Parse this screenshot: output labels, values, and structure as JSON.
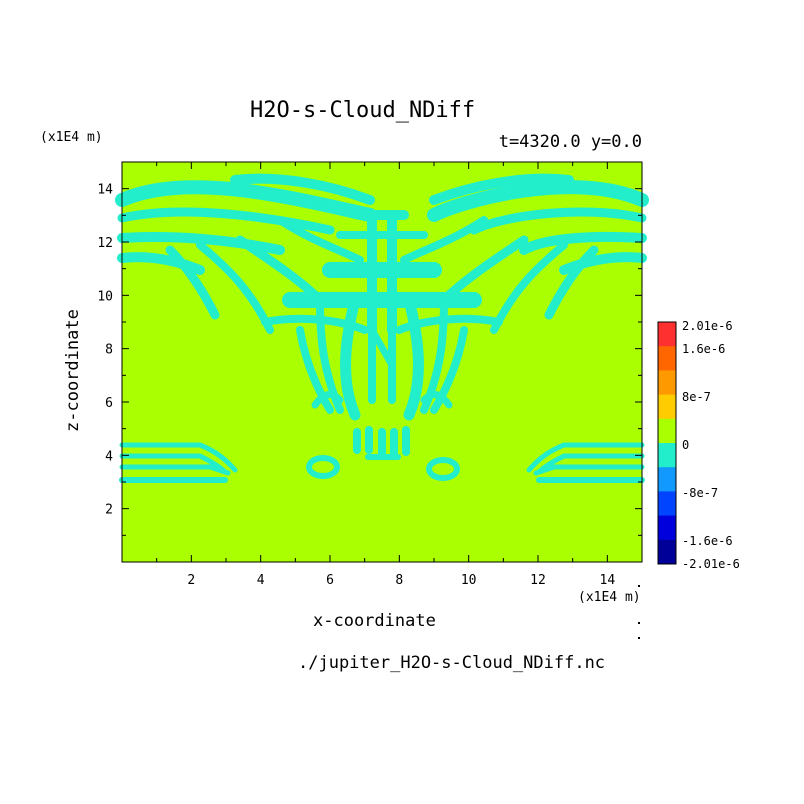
{
  "chart_data": {
    "type": "heatmap",
    "title": "H2O-s-Cloud_NDiff",
    "subtitle": "t=4320.0 y=0.0",
    "xlabel": "x-coordinate",
    "ylabel": "z-coordinate",
    "x_unit": "(x1E4 m)",
    "y_unit": "(x1E4 m)",
    "xlim": [
      0,
      15
    ],
    "ylim": [
      0,
      15
    ],
    "x_ticks": [
      "2",
      "4",
      "6",
      "8",
      "10",
      "12",
      "14"
    ],
    "y_ticks": [
      "2",
      "4",
      "6",
      "8",
      "10",
      "12",
      "14"
    ],
    "background_value": 0,
    "background_color": "#aaff00",
    "anomaly_value": "-8e-7",
    "anomaly_color": "#22eecc",
    "colorbar": {
      "labels": [
        "2.01e-6",
        "1.6e-6",
        "8e-7",
        "0",
        "-8e-7",
        "-1.6e-6",
        "-2.01e-6"
      ],
      "colors": [
        "#ff3030",
        "#ff6600",
        "#ff9900",
        "#ffcc00",
        "#aaff00",
        "#22eecc",
        "#1199ff",
        "#0044ff",
        "#0000dd",
        "#000099"
      ]
    },
    "footer": "./jupiter_H2O-s-Cloud_NDiff.nc"
  }
}
